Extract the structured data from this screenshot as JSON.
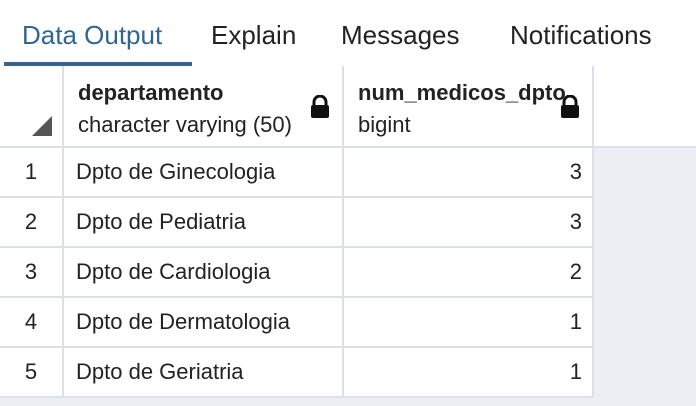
{
  "tabs": [
    {
      "label": "Data Output",
      "active": true
    },
    {
      "label": "Explain",
      "active": false
    },
    {
      "label": "Messages",
      "active": false
    },
    {
      "label": "Notifications",
      "active": false
    }
  ],
  "columns": [
    {
      "name": "departamento",
      "type": "character varying (50)",
      "icon": "lock-icon"
    },
    {
      "name": "num_medicos_dpto",
      "type": "bigint",
      "icon": "lock-icon"
    }
  ],
  "rows": [
    {
      "num": "1",
      "departamento": "Dpto de Ginecologia",
      "num_medicos_dpto": "3"
    },
    {
      "num": "2",
      "departamento": "Dpto de Pediatria",
      "num_medicos_dpto": "3"
    },
    {
      "num": "3",
      "departamento": "Dpto de Cardiologia",
      "num_medicos_dpto": "2"
    },
    {
      "num": "4",
      "departamento": "Dpto de Dermatologia",
      "num_medicos_dpto": "1"
    },
    {
      "num": "5",
      "departamento": "Dpto de Geriatria",
      "num_medicos_dpto": "1"
    }
  ],
  "colors": {
    "accent": "#326690",
    "border": "#dde0e6",
    "background": "#ebeef3"
  }
}
